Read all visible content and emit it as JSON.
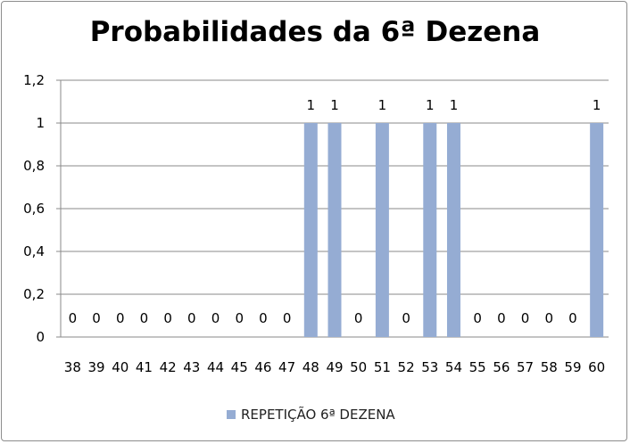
{
  "chart_data": {
    "type": "bar",
    "title": "Probabilidades da 6ª Dezena",
    "categories": [
      "38",
      "39",
      "40",
      "41",
      "42",
      "43",
      "44",
      "45",
      "46",
      "47",
      "48",
      "49",
      "50",
      "51",
      "52",
      "53",
      "54",
      "55",
      "56",
      "57",
      "58",
      "59",
      "60"
    ],
    "series": [
      {
        "name": "REPETIÇÃO 6ª DEZENA",
        "values": [
          0,
          0,
          0,
          0,
          0,
          0,
          0,
          0,
          0,
          0,
          1,
          1,
          0,
          1,
          0,
          1,
          1,
          0,
          0,
          0,
          0,
          0,
          1
        ],
        "color": "#95acd3"
      }
    ],
    "ylim": [
      0,
      1.2
    ],
    "yticks": [
      "0",
      "0,2",
      "0,4",
      "0,6",
      "0,8",
      "1",
      "1,2"
    ],
    "grid": true,
    "legend_position": "bottom",
    "data_labels": true
  }
}
